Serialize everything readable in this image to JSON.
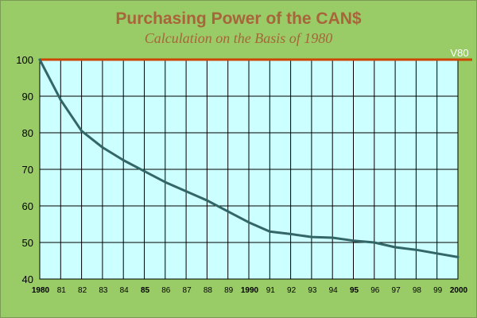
{
  "chart_data": {
    "type": "line",
    "title": "Purchasing Power of the CAN$",
    "subtitle": "Calculation on the Basis of 1980",
    "x_tick_labels": [
      "1980",
      "81",
      "82",
      "83",
      "84",
      "85",
      "86",
      "87",
      "88",
      "89",
      "1990",
      "91",
      "92",
      "93",
      "94",
      "95",
      "96",
      "97",
      "98",
      "99",
      "2000"
    ],
    "bold_ticks": [
      "1980",
      "85",
      "1990",
      "95",
      "2000"
    ],
    "y_ticks": [
      40,
      50,
      60,
      70,
      80,
      90,
      100
    ],
    "xlim": [
      1980,
      2000
    ],
    "ylim": [
      40,
      100
    ],
    "grid": true,
    "reference_line": {
      "label": "V80",
      "value": 100,
      "color": "#cc4400"
    },
    "series": [
      {
        "color": "#336666",
        "x": [
          1980,
          1981,
          1982,
          1983,
          1984,
          1985,
          1986,
          1987,
          1988,
          1989,
          1990,
          1991,
          1992,
          1993,
          1994,
          1995,
          1996,
          1997,
          1998,
          1999,
          2000
        ],
        "values": [
          100,
          89,
          80.5,
          76,
          72.5,
          69.5,
          66.5,
          64,
          61.5,
          58.5,
          55.5,
          53,
          52.3,
          51.5,
          51.3,
          50.5,
          50,
          48.7,
          48,
          47,
          46
        ]
      }
    ]
  }
}
